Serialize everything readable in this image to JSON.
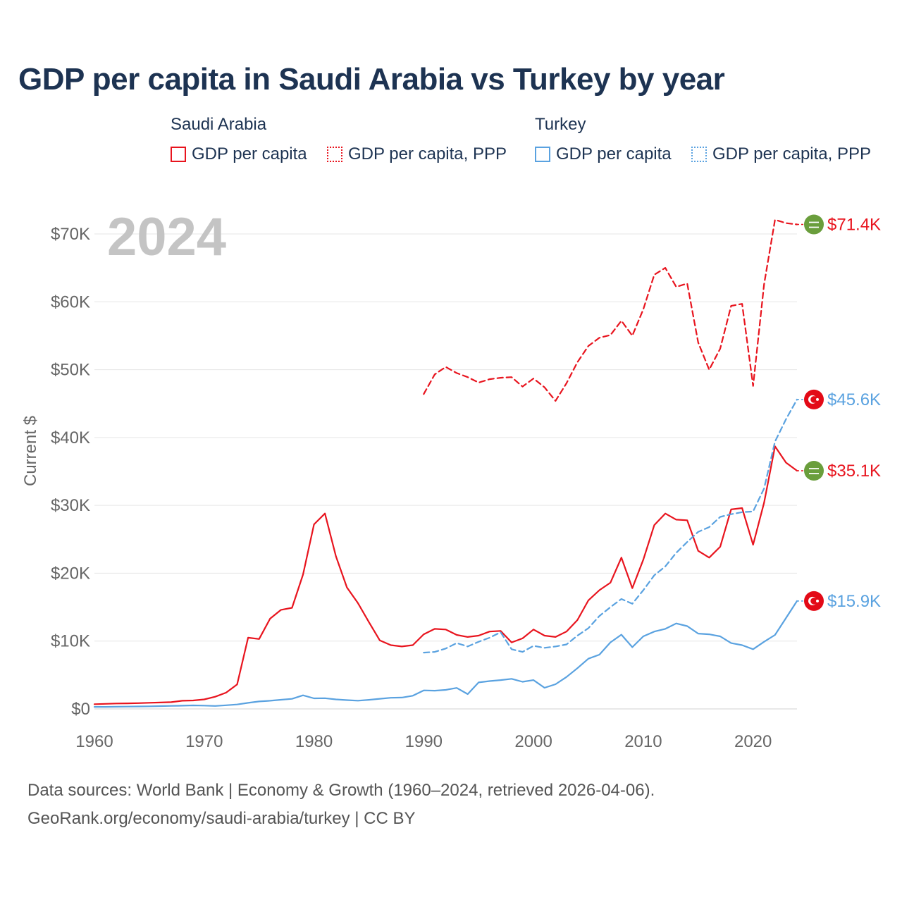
{
  "title": "GDP per capita in Saudi Arabia vs Turkey by year",
  "legend": {
    "groups": [
      {
        "label": "Saudi Arabia",
        "items": [
          "GDP per capita",
          "GDP per capita, PPP"
        ]
      },
      {
        "label": "Turkey",
        "items": [
          "GDP per capita",
          "GDP per capita, PPP"
        ]
      }
    ]
  },
  "source": {
    "line1": "Data sources: World Bank | Economy & Growth (1960–2024, retrieved 2026-04-06).",
    "line2": "GeoRank.org/economy/saudi-arabia/turkey | CC BY"
  },
  "chart_data": {
    "type": "line",
    "year_watermark": "2024",
    "ylabel": "Current $",
    "xlim": [
      1960,
      2024
    ],
    "ylim": [
      0,
      70000
    ],
    "x_ticks": [
      1960,
      1970,
      1980,
      1990,
      2000,
      2010,
      2020
    ],
    "x_tick_labels": [
      "1960",
      "1970",
      "1980",
      "1990",
      "2000",
      "2010",
      "2020"
    ],
    "y_ticks": [
      0,
      10000,
      20000,
      30000,
      40000,
      50000,
      60000,
      70000
    ],
    "y_tick_labels": [
      "$0",
      "$10K",
      "$20K",
      "$30K",
      "$40K",
      "$50K",
      "$60K",
      "$70K"
    ],
    "colors": {
      "saudi": "#e8141e",
      "turkey": "#5aa2e0",
      "badge_saudi": "#6a9e3c",
      "badge_turkey": "#e30a17"
    },
    "series": [
      {
        "name": "Saudi Arabia GDP per capita",
        "country": "Saudi Arabia",
        "style": "solid",
        "color": "#e8141e",
        "end_label": "$35.1K",
        "points": [
          [
            1960,
            700
          ],
          [
            1961,
            750
          ],
          [
            1962,
            800
          ],
          [
            1963,
            820
          ],
          [
            1964,
            850
          ],
          [
            1965,
            900
          ],
          [
            1966,
            950
          ],
          [
            1967,
            1000
          ],
          [
            1968,
            1200
          ],
          [
            1969,
            1250
          ],
          [
            1970,
            1400
          ],
          [
            1971,
            1800
          ],
          [
            1972,
            2400
          ],
          [
            1973,
            3600
          ],
          [
            1974,
            10500
          ],
          [
            1975,
            10300
          ],
          [
            1976,
            13300
          ],
          [
            1977,
            14600
          ],
          [
            1978,
            14900
          ],
          [
            1979,
            19800
          ],
          [
            1980,
            27200
          ],
          [
            1981,
            28800
          ],
          [
            1982,
            22500
          ],
          [
            1983,
            17900
          ],
          [
            1984,
            15600
          ],
          [
            1985,
            12800
          ],
          [
            1986,
            10100
          ],
          [
            1987,
            9400
          ],
          [
            1988,
            9200
          ],
          [
            1989,
            9400
          ],
          [
            1990,
            11000
          ],
          [
            1991,
            11800
          ],
          [
            1992,
            11700
          ],
          [
            1993,
            10900
          ],
          [
            1994,
            10600
          ],
          [
            1995,
            10800
          ],
          [
            1996,
            11400
          ],
          [
            1997,
            11500
          ],
          [
            1998,
            9800
          ],
          [
            1999,
            10400
          ],
          [
            2000,
            11700
          ],
          [
            2001,
            10800
          ],
          [
            2002,
            10600
          ],
          [
            2003,
            11400
          ],
          [
            2004,
            13100
          ],
          [
            2005,
            16000
          ],
          [
            2006,
            17500
          ],
          [
            2007,
            18600
          ],
          [
            2008,
            22300
          ],
          [
            2009,
            17800
          ],
          [
            2010,
            22000
          ],
          [
            2011,
            27100
          ],
          [
            2012,
            28800
          ],
          [
            2013,
            27900
          ],
          [
            2014,
            27800
          ],
          [
            2015,
            23300
          ],
          [
            2016,
            22300
          ],
          [
            2017,
            23900
          ],
          [
            2018,
            29400
          ],
          [
            2019,
            29600
          ],
          [
            2020,
            24200
          ],
          [
            2021,
            30400
          ],
          [
            2022,
            38700
          ],
          [
            2023,
            36300
          ],
          [
            2024,
            35100
          ]
        ]
      },
      {
        "name": "Saudi Arabia GDP per capita, PPP",
        "country": "Saudi Arabia",
        "style": "dashed",
        "color": "#e8141e",
        "end_label": "$71.4K",
        "points": [
          [
            1990,
            46400
          ],
          [
            1991,
            49300
          ],
          [
            1992,
            50400
          ],
          [
            1993,
            49500
          ],
          [
            1994,
            48900
          ],
          [
            1995,
            48100
          ],
          [
            1996,
            48600
          ],
          [
            1997,
            48800
          ],
          [
            1998,
            48900
          ],
          [
            1999,
            47500
          ],
          [
            2000,
            48700
          ],
          [
            2001,
            47400
          ],
          [
            2002,
            45400
          ],
          [
            2003,
            48000
          ],
          [
            2004,
            51100
          ],
          [
            2005,
            53500
          ],
          [
            2006,
            54700
          ],
          [
            2007,
            55100
          ],
          [
            2008,
            57200
          ],
          [
            2009,
            55000
          ],
          [
            2010,
            58900
          ],
          [
            2011,
            64000
          ],
          [
            2012,
            65000
          ],
          [
            2013,
            62200
          ],
          [
            2014,
            62700
          ],
          [
            2015,
            54000
          ],
          [
            2016,
            50000
          ],
          [
            2017,
            53100
          ],
          [
            2018,
            59400
          ],
          [
            2019,
            59700
          ],
          [
            2020,
            47600
          ],
          [
            2021,
            62600
          ],
          [
            2022,
            72100
          ],
          [
            2023,
            71600
          ],
          [
            2024,
            71400
          ]
        ]
      },
      {
        "name": "Turkey GDP per capita",
        "country": "Turkey",
        "style": "solid",
        "color": "#5aa2e0",
        "end_label": "$15.9K",
        "points": [
          [
            1960,
            300
          ],
          [
            1961,
            300
          ],
          [
            1962,
            320
          ],
          [
            1963,
            340
          ],
          [
            1964,
            360
          ],
          [
            1965,
            380
          ],
          [
            1966,
            420
          ],
          [
            1967,
            450
          ],
          [
            1968,
            480
          ],
          [
            1969,
            520
          ],
          [
            1970,
            490
          ],
          [
            1971,
            440
          ],
          [
            1972,
            540
          ],
          [
            1973,
            650
          ],
          [
            1974,
            890
          ],
          [
            1975,
            1100
          ],
          [
            1976,
            1200
          ],
          [
            1977,
            1350
          ],
          [
            1978,
            1480
          ],
          [
            1979,
            2000
          ],
          [
            1980,
            1560
          ],
          [
            1981,
            1580
          ],
          [
            1982,
            1400
          ],
          [
            1983,
            1300
          ],
          [
            1984,
            1220
          ],
          [
            1985,
            1340
          ],
          [
            1986,
            1500
          ],
          [
            1987,
            1640
          ],
          [
            1988,
            1670
          ],
          [
            1989,
            1940
          ],
          [
            1990,
            2730
          ],
          [
            1991,
            2690
          ],
          [
            1992,
            2800
          ],
          [
            1993,
            3100
          ],
          [
            1994,
            2180
          ],
          [
            1995,
            3900
          ],
          [
            1996,
            4100
          ],
          [
            1997,
            4250
          ],
          [
            1998,
            4430
          ],
          [
            1999,
            4000
          ],
          [
            2000,
            4250
          ],
          [
            2001,
            3120
          ],
          [
            2002,
            3640
          ],
          [
            2003,
            4700
          ],
          [
            2004,
            6000
          ],
          [
            2005,
            7400
          ],
          [
            2006,
            8000
          ],
          [
            2007,
            9800
          ],
          [
            2008,
            10950
          ],
          [
            2009,
            9100
          ],
          [
            2010,
            10700
          ],
          [
            2011,
            11400
          ],
          [
            2012,
            11800
          ],
          [
            2013,
            12600
          ],
          [
            2014,
            12200
          ],
          [
            2015,
            11100
          ],
          [
            2016,
            11000
          ],
          [
            2017,
            10700
          ],
          [
            2018,
            9700
          ],
          [
            2019,
            9400
          ],
          [
            2020,
            8800
          ],
          [
            2021,
            9900
          ],
          [
            2022,
            10900
          ],
          [
            2023,
            13400
          ],
          [
            2024,
            15900
          ]
        ]
      },
      {
        "name": "Turkey GDP per capita, PPP",
        "country": "Turkey",
        "style": "dashed",
        "color": "#5aa2e0",
        "end_label": "$45.6K",
        "points": [
          [
            1990,
            8300
          ],
          [
            1991,
            8400
          ],
          [
            1992,
            8900
          ],
          [
            1993,
            9700
          ],
          [
            1994,
            9200
          ],
          [
            1995,
            9900
          ],
          [
            1996,
            10500
          ],
          [
            1997,
            11300
          ],
          [
            1998,
            8800
          ],
          [
            1999,
            8400
          ],
          [
            2000,
            9300
          ],
          [
            2001,
            9000
          ],
          [
            2002,
            9200
          ],
          [
            2003,
            9500
          ],
          [
            2004,
            10800
          ],
          [
            2005,
            11900
          ],
          [
            2006,
            13700
          ],
          [
            2007,
            15000
          ],
          [
            2008,
            16200
          ],
          [
            2009,
            15500
          ],
          [
            2010,
            17500
          ],
          [
            2011,
            19700
          ],
          [
            2012,
            21000
          ],
          [
            2013,
            23000
          ],
          [
            2014,
            24600
          ],
          [
            2015,
            26100
          ],
          [
            2016,
            26800
          ],
          [
            2017,
            28300
          ],
          [
            2018,
            28700
          ],
          [
            2019,
            29000
          ],
          [
            2020,
            29100
          ],
          [
            2021,
            32500
          ],
          [
            2022,
            39400
          ],
          [
            2023,
            42700
          ],
          [
            2024,
            45600
          ]
        ]
      }
    ]
  }
}
